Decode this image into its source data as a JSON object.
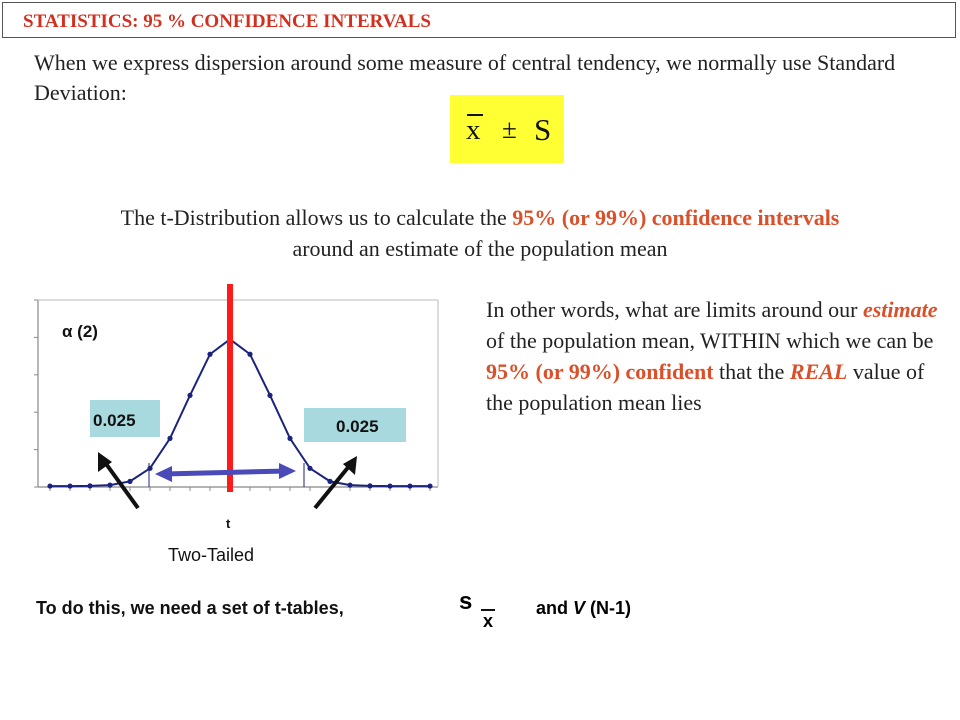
{
  "header": {
    "title": "STATISTICS: 95 % CONFIDENCE INTERVALS"
  },
  "intro": {
    "text": "When we express dispersion around some measure of central tendency, we normally use Standard Deviation:"
  },
  "formula": {
    "x": "x",
    "pm": "±",
    "s": "S"
  },
  "tdist": {
    "line1_a": "The t-Distribution allows us to calculate the ",
    "line1_red": "95% (or 99%) confidence intervals",
    "line2": "around an estimate of the population mean"
  },
  "other_words": {
    "p1": "In other words, what are limits around our ",
    "estimate": "estimate",
    "p2": " of  the population mean, WITHIN which we can be ",
    "red1": "95% (or 99%) confident",
    "p3": " that the ",
    "real": "REAL",
    "p4": " value of  the population mean lies"
  },
  "chart_data": {
    "type": "line",
    "alpha_label": "α (2)",
    "xlabel": "t",
    "caption": "Two-Tailed",
    "tail_left": "0.025",
    "tail_right": "0.025",
    "points": [
      0.005,
      0.005,
      0.006,
      0.01,
      0.03,
      0.1,
      0.26,
      0.49,
      0.71,
      0.79,
      0.71,
      0.49,
      0.26,
      0.1,
      0.03,
      0.01,
      0.006,
      0.005,
      0.005,
      0.005
    ]
  },
  "bottom": {
    "text": "To do this, we need a set of t-tables,",
    "s": "s",
    "x": "x",
    "and": "and ",
    "v": "V",
    "n": " (N-1)"
  },
  "colors": {
    "red": "#d9502a",
    "accent_line": "#ff1a1a",
    "curve": "#1a237e",
    "tail_box": "#a8d9de",
    "arrow": "#4a4ab8",
    "highlight": "#ffff33"
  }
}
